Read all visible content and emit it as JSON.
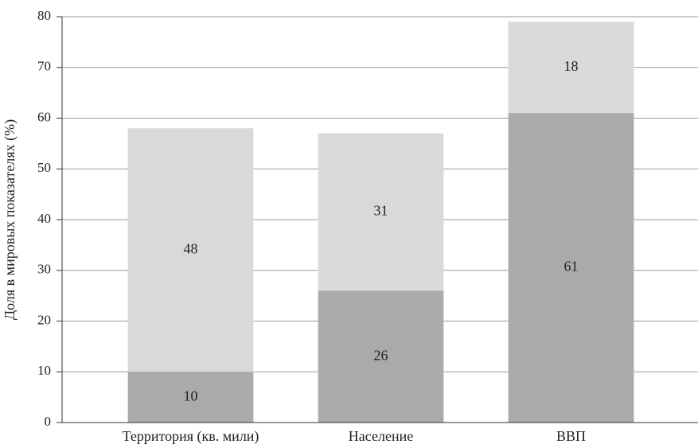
{
  "chart_data": {
    "type": "stacked-bar",
    "y_label": "Доля в мировых показателях (%)",
    "categories": [
      "Территория (кв. мили)",
      "Население",
      "ВВП"
    ],
    "series": [
      {
        "color": "#aaaaaa",
        "values": [
          10,
          26,
          61
        ]
      },
      {
        "color": "#d9d9d9",
        "values": [
          48,
          31,
          18
        ]
      }
    ],
    "ylim": [
      0,
      80
    ],
    "yticks": [
      0,
      10,
      20,
      30,
      40,
      50,
      60,
      70,
      80
    ],
    "grid": true
  }
}
